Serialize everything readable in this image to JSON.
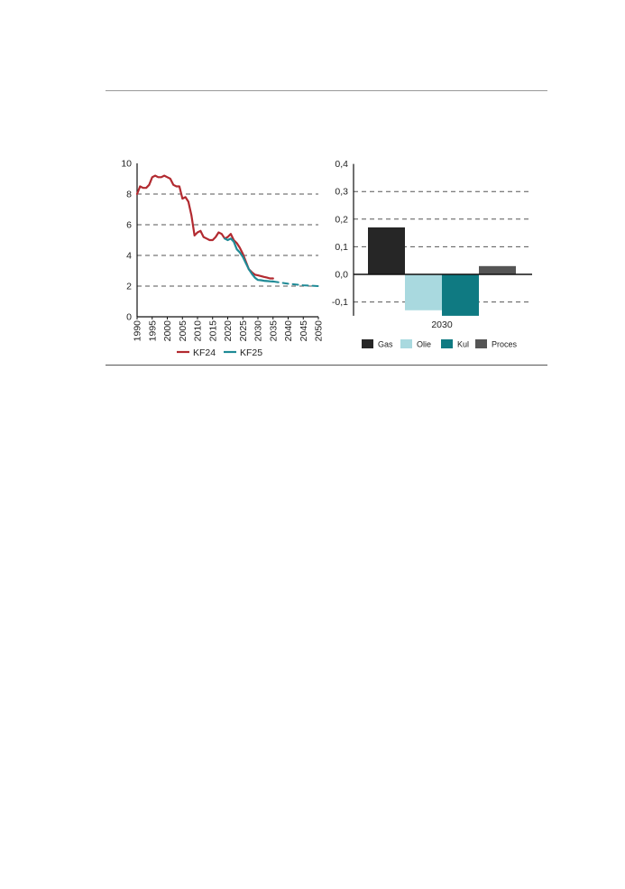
{
  "colors": {
    "kf24": "#b22a30",
    "kf25": "#1f8a96",
    "gas": "#262626",
    "olie": "#a9d9df",
    "kul": "#0f7a82",
    "proces": "#555555",
    "grid": "#555555",
    "axis": "#111111"
  },
  "chart_data": [
    {
      "type": "line",
      "title": "",
      "xlabel": "",
      "ylabel": "",
      "xlim": [
        1990,
        2050
      ],
      "ylim": [
        0,
        10
      ],
      "x_ticks": [
        "1990",
        "1995",
        "2000",
        "2005",
        "2010",
        "2015",
        "2020",
        "2025",
        "2030",
        "2035",
        "2040",
        "2045",
        "2050"
      ],
      "y_ticks": [
        "0",
        "2",
        "4",
        "6",
        "8",
        "10"
      ],
      "grid": "horizontal dashed",
      "legend": "bottom",
      "series": [
        {
          "name": "KF24",
          "color": "#b22a30",
          "style": "solid",
          "x": [
            1990,
            1991,
            1992,
            1993,
            1994,
            1995,
            1996,
            1997,
            1998,
            1999,
            2000,
            2001,
            2002,
            2003,
            2004,
            2005,
            2006,
            2007,
            2008,
            2009,
            2010,
            2011,
            2012,
            2013,
            2014,
            2015,
            2016,
            2017,
            2018,
            2019,
            2020,
            2021,
            2022,
            2023,
            2024,
            2025,
            2026,
            2027,
            2028,
            2029,
            2030,
            2031,
            2032,
            2033,
            2034,
            2035
          ],
          "y": [
            8.0,
            8.5,
            8.4,
            8.4,
            8.6,
            9.1,
            9.2,
            9.1,
            9.1,
            9.2,
            9.1,
            9.0,
            8.6,
            8.5,
            8.5,
            7.7,
            7.8,
            7.5,
            6.6,
            5.3,
            5.5,
            5.6,
            5.2,
            5.1,
            5.0,
            5.0,
            5.2,
            5.5,
            5.4,
            5.1,
            5.2,
            5.4,
            5.0,
            4.8,
            4.5,
            4.1,
            3.6,
            3.1,
            2.9,
            2.75,
            2.7,
            2.65,
            2.6,
            2.55,
            2.5,
            2.5
          ]
        },
        {
          "name": "KF25",
          "color": "#1f8a96",
          "style": "solid",
          "x": [
            2019,
            2020,
            2021,
            2022,
            2023,
            2024,
            2025,
            2026,
            2027,
            2028,
            2029,
            2030,
            2031,
            2032,
            2033,
            2034,
            2035
          ],
          "y": [
            5.1,
            5.0,
            5.1,
            4.9,
            4.4,
            4.2,
            3.9,
            3.5,
            3.1,
            2.8,
            2.55,
            2.4,
            2.38,
            2.35,
            2.33,
            2.31,
            2.3
          ]
        },
        {
          "name": "KF25 projection",
          "color": "#1f8a96",
          "style": "dashed",
          "x": [
            2035,
            2040,
            2045,
            2050
          ],
          "y": [
            2.3,
            2.15,
            2.05,
            2.0
          ]
        }
      ],
      "legend_entries": [
        "KF24",
        "KF25"
      ]
    },
    {
      "type": "bar",
      "title": "",
      "xlabel": "2030",
      "ylabel": "",
      "ylim": [
        -0.15,
        0.4
      ],
      "y_ticks": [
        "-0,1",
        "0,0",
        "0,1",
        "0,2",
        "0,3",
        "0,4"
      ],
      "grid": "horizontal dashed",
      "legend": "bottom",
      "categories": [
        "2030"
      ],
      "series": [
        {
          "name": "Gas",
          "color": "#262626",
          "values": [
            0.17
          ]
        },
        {
          "name": "Olie",
          "color": "#a9d9df",
          "values": [
            -0.13
          ]
        },
        {
          "name": "Kul",
          "color": "#0f7a82",
          "values": [
            -0.15
          ]
        },
        {
          "name": "Proces",
          "color": "#555555",
          "values": [
            0.03
          ]
        }
      ]
    }
  ]
}
